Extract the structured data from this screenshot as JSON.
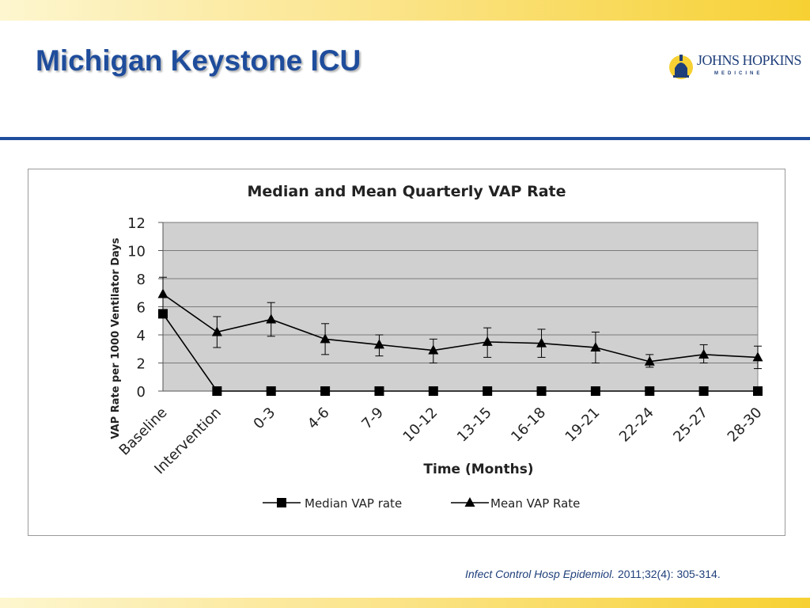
{
  "slide": {
    "title": "Michigan Keystone ICU",
    "logo": {
      "line1": "JOHNS HOPKINS",
      "line2": "MEDICINE",
      "icon": "dome-icon"
    },
    "citation": {
      "journal": "Infect Control Hosp Epidemiol.",
      "details": "2011;32(4): 305-314."
    }
  },
  "colors": {
    "title": "#1f4d9c",
    "rule": "#1f4d9c",
    "band": "#f7d133",
    "plot_bg": "#d0d0d0",
    "series": "#000000"
  },
  "chart_data": {
    "type": "line",
    "title": "Median and Mean Quarterly VAP Rate",
    "xlabel": "Time (Months)",
    "ylabel": "VAP Rate per 1000 Ventilator Days",
    "categories": [
      "Baseline",
      "Intervention",
      "0-3",
      "4-6",
      "7-9",
      "10-12",
      "13-15",
      "16-18",
      "19-21",
      "22-24",
      "25-27",
      "28-30"
    ],
    "ylim": [
      0,
      12
    ],
    "yticks": [
      0,
      2,
      4,
      6,
      8,
      10,
      12
    ],
    "grid": true,
    "legend": "bottom",
    "series": [
      {
        "name": "Median VAP rate",
        "marker": "square",
        "values": [
          5.5,
          0,
          0,
          0,
          0,
          0,
          0,
          0,
          0,
          0,
          0,
          0
        ]
      },
      {
        "name": "Mean VAP Rate",
        "marker": "triangle",
        "values": [
          6.9,
          4.2,
          5.1,
          3.7,
          3.3,
          2.9,
          3.5,
          3.4,
          3.1,
          2.1,
          2.6,
          2.4
        ],
        "error_high": [
          8.1,
          5.3,
          6.3,
          4.8,
          4.0,
          3.7,
          4.5,
          4.4,
          4.2,
          2.6,
          3.3,
          3.2
        ],
        "error_low": [
          5.6,
          3.1,
          3.9,
          2.6,
          2.5,
          2.0,
          2.4,
          2.4,
          2.0,
          1.7,
          2.0,
          1.6
        ]
      }
    ]
  }
}
